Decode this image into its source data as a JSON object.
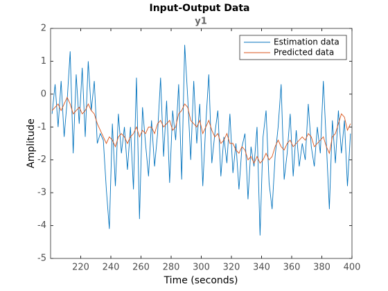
{
  "chart_data": {
    "type": "line",
    "title": "Input-Output Data",
    "subtitle": "y1",
    "x_label": "Time (seconds)",
    "y_label": "Amplitude",
    "x": [
      201,
      203,
      205,
      207,
      209,
      211,
      213,
      215,
      217,
      219,
      221,
      223,
      225,
      227,
      229,
      231,
      233,
      235,
      237,
      239,
      241,
      243,
      245,
      247,
      249,
      251,
      253,
      255,
      257,
      259,
      261,
      263,
      265,
      267,
      269,
      271,
      273,
      275,
      277,
      279,
      281,
      283,
      285,
      287,
      289,
      291,
      293,
      295,
      297,
      299,
      301,
      303,
      305,
      307,
      309,
      311,
      313,
      315,
      317,
      319,
      321,
      323,
      325,
      327,
      329,
      331,
      333,
      335,
      337,
      339,
      341,
      343,
      345,
      347,
      349,
      351,
      353,
      355,
      357,
      359,
      361,
      363,
      365,
      367,
      369,
      371,
      373,
      375,
      377,
      379,
      381,
      383,
      385,
      387,
      389,
      391,
      393,
      395,
      397,
      399
    ],
    "series": [
      {
        "name": "Estimation data",
        "color": "#0072bd",
        "values": [
          -0.6,
          0.3,
          -1.0,
          0.4,
          -1.3,
          -0.2,
          1.3,
          -1.8,
          0.6,
          -0.9,
          0.8,
          -1.3,
          1.0,
          -0.5,
          0.4,
          -1.5,
          -1.2,
          -1.4,
          -2.9,
          -4.1,
          -0.9,
          -2.8,
          -0.6,
          -1.8,
          -1.0,
          -2.3,
          -1.0,
          -2.9,
          0.5,
          -3.8,
          -0.4,
          -1.5,
          -2.5,
          -0.8,
          -2.2,
          -1.2,
          0.5,
          -1.9,
          -0.2,
          -2.7,
          -0.5,
          -1.4,
          0.3,
          -2.6,
          1.5,
          -0.1,
          -2.0,
          0.4,
          -1.5,
          -0.3,
          -2.8,
          -0.9,
          0.6,
          -2.1,
          -1.2,
          -0.5,
          -2.5,
          -1.3,
          -2.1,
          -0.6,
          -2.4,
          -1.5,
          -2.9,
          -1.6,
          -1.2,
          -3.2,
          -1.6,
          -2.2,
          -1.0,
          -4.3,
          -1.3,
          -0.5,
          -2.7,
          -3.5,
          -1.9,
          -1.0,
          0.3,
          -2.6,
          -1.8,
          -0.6,
          -2.5,
          -1.1,
          -2.2,
          -1.5,
          -2.0,
          -0.3,
          -1.6,
          -2.2,
          -1.0,
          -1.8,
          0.4,
          -1.5,
          -3.5,
          -0.8,
          -2.1,
          -0.5,
          -1.8,
          -0.8,
          -2.8,
          -1.2
        ]
      },
      {
        "name": "Predicted data",
        "color": "#d95319",
        "values": [
          -0.5,
          -0.4,
          -0.3,
          -0.5,
          -0.3,
          -0.1,
          -0.3,
          -0.6,
          -0.5,
          -0.4,
          -0.6,
          -0.5,
          -0.3,
          -0.5,
          -0.6,
          -0.9,
          -1.1,
          -1.3,
          -1.5,
          -1.3,
          -1.4,
          -1.6,
          -1.3,
          -1.2,
          -1.3,
          -1.5,
          -1.3,
          -1.2,
          -1.0,
          -1.3,
          -1.1,
          -1.2,
          -1.0,
          -1.0,
          -1.2,
          -0.9,
          -0.8,
          -1.0,
          -0.9,
          -0.8,
          -1.1,
          -1.0,
          -0.6,
          -0.5,
          -0.3,
          -0.4,
          -0.8,
          -0.9,
          -1.0,
          -0.8,
          -1.2,
          -1.0,
          -0.8,
          -1.1,
          -1.3,
          -1.2,
          -1.5,
          -1.4,
          -1.2,
          -1.5,
          -1.5,
          -1.7,
          -1.8,
          -1.6,
          -1.7,
          -2.0,
          -1.9,
          -2.1,
          -1.9,
          -2.1,
          -2.0,
          -1.8,
          -2.0,
          -1.9,
          -1.6,
          -1.4,
          -1.6,
          -1.7,
          -1.5,
          -1.4,
          -1.6,
          -1.5,
          -1.4,
          -1.3,
          -1.4,
          -1.2,
          -1.3,
          -1.6,
          -1.5,
          -1.4,
          -1.3,
          -1.6,
          -1.8,
          -1.3,
          -1.2,
          -0.9,
          -0.6,
          -0.7,
          -1.1,
          -0.9
        ]
      }
    ],
    "xlim": [
      200,
      400
    ],
    "xticks": [
      220,
      240,
      260,
      280,
      300,
      320,
      340,
      360,
      380,
      400
    ],
    "ylim": [
      -5,
      2
    ],
    "yticks": [
      -5,
      -4,
      -3,
      -2,
      -1,
      0,
      1,
      2
    ],
    "legend": "top-right"
  }
}
